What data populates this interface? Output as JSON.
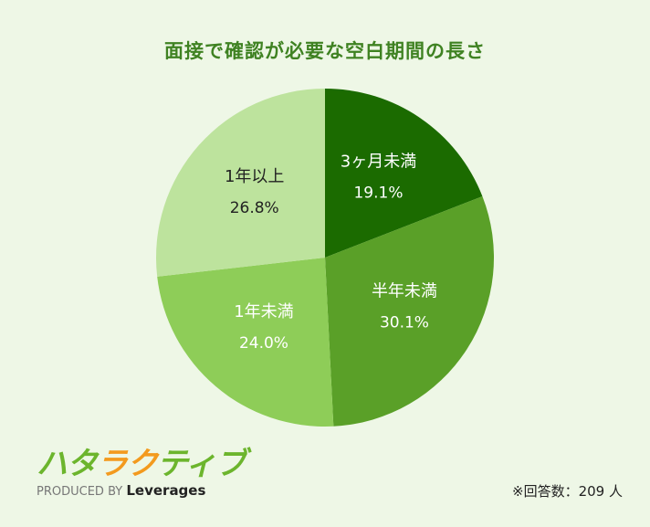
{
  "chart_data": {
    "type": "pie",
    "title": "面接で確認が必要な空白期間の長さ",
    "start": "top",
    "direction": "clockwise",
    "slices": [
      {
        "label": "3ヶ月未満",
        "value": 19.1,
        "display": "19.1%",
        "color": "#1b6b00",
        "text_color": "#ffffff"
      },
      {
        "label": "半年未満",
        "value": 30.1,
        "display": "30.1%",
        "color": "#5aa028",
        "text_color": "#ffffff"
      },
      {
        "label": "1年未満",
        "value": 24.0,
        "display": "24.0%",
        "color": "#8ecd58",
        "text_color": "#ffffff"
      },
      {
        "label": "1年以上",
        "value": 26.8,
        "display": "26.8%",
        "color": "#bde39d",
        "text_color": "#222222"
      }
    ]
  },
  "logo": {
    "mark": "ハタラクティブ",
    "produced_by": "PRODUCED BY",
    "brand": "Leverages"
  },
  "note": "※回答数：209 人"
}
